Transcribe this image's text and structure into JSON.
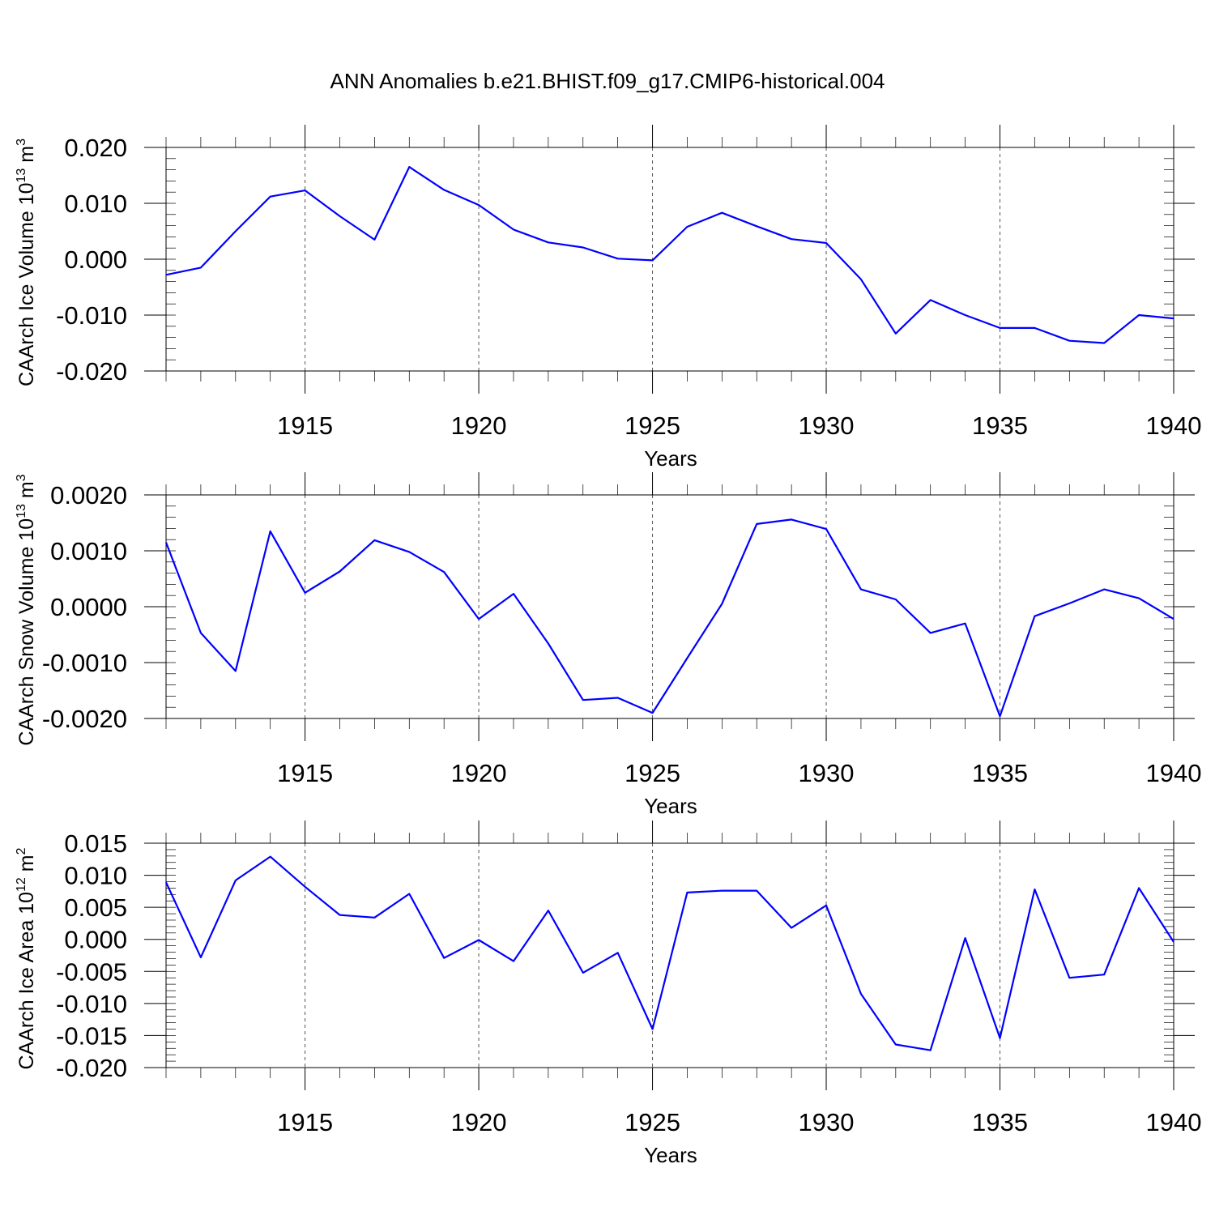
{
  "title": "ANN Anomalies b.e21.BHIST.f09_g17.CMIP6-historical.004",
  "colors": {
    "series": "#0000ff",
    "axes": "#000000",
    "grid": "#555555"
  },
  "chart_data": [
    {
      "type": "line",
      "ylabel": "CAArch Ice Volume",
      "yunit_base": "10",
      "yunit_exp": "13",
      "yunit_dim": "m",
      "yunit_dim_exp": "3",
      "xlabel": "Years",
      "xlim": [
        1911,
        1940
      ],
      "ylim": [
        -0.02,
        0.02
      ],
      "yticks": [
        -0.02,
        -0.01,
        0.0,
        0.01,
        0.02
      ],
      "ytick_labels": [
        "-0.020",
        "-0.010",
        "0.000",
        "0.010",
        "0.020"
      ],
      "ytick_step_minor": 0.002,
      "xticks": [
        1915,
        1920,
        1925,
        1930,
        1935,
        1940
      ],
      "xtick_labels": [
        "1915",
        "1920",
        "1925",
        "1930",
        "1935",
        "1940"
      ],
      "x": [
        1911,
        1912,
        1913,
        1914,
        1915,
        1916,
        1917,
        1918,
        1919,
        1920,
        1921,
        1922,
        1923,
        1924,
        1925,
        1926,
        1927,
        1928,
        1929,
        1930,
        1931,
        1932,
        1933,
        1934,
        1935,
        1936,
        1937,
        1938,
        1939,
        1940
      ],
      "values": [
        -0.0028,
        -0.0015,
        0.005,
        0.0112,
        0.0123,
        0.0077,
        0.0035,
        0.0165,
        0.0124,
        0.0097,
        0.0053,
        0.003,
        0.0021,
        0.0001,
        -0.0002,
        0.0058,
        0.0083,
        0.0059,
        0.0036,
        0.0029,
        -0.0036,
        -0.0133,
        -0.0073,
        -0.01,
        -0.0123,
        -0.0123,
        -0.0146,
        -0.015,
        -0.01,
        -0.0106
      ]
    },
    {
      "type": "line",
      "ylabel": "CAArch Snow Volume",
      "yunit_base": "10",
      "yunit_exp": "13",
      "yunit_dim": "m",
      "yunit_dim_exp": "3",
      "xlabel": "Years",
      "xlim": [
        1911,
        1940
      ],
      "ylim": [
        -0.002,
        0.002
      ],
      "yticks": [
        -0.002,
        -0.001,
        0.0,
        0.001,
        0.002
      ],
      "ytick_labels": [
        "-0.0020",
        "-0.0010",
        "0.0000",
        "0.0010",
        "0.0020"
      ],
      "ytick_step_minor": 0.0002,
      "xticks": [
        1915,
        1920,
        1925,
        1930,
        1935,
        1940
      ],
      "xtick_labels": [
        "1915",
        "1920",
        "1925",
        "1930",
        "1935",
        "1940"
      ],
      "x": [
        1911,
        1912,
        1913,
        1914,
        1915,
        1916,
        1917,
        1918,
        1919,
        1920,
        1921,
        1922,
        1923,
        1924,
        1925,
        1926,
        1927,
        1928,
        1929,
        1930,
        1931,
        1932,
        1933,
        1934,
        1935,
        1936,
        1937,
        1938,
        1939,
        1940
      ],
      "values": [
        0.00115,
        -0.00047,
        -0.00115,
        0.00135,
        0.00025,
        0.00063,
        0.00119,
        0.00098,
        0.00062,
        -0.00022,
        0.00023,
        -0.00066,
        -0.00167,
        -0.00163,
        -0.0019,
        -0.00092,
        5e-05,
        0.00148,
        0.00156,
        0.00139,
        0.00031,
        0.00013,
        -0.00047,
        -0.0003,
        -0.00196,
        -0.00017,
        6e-05,
        0.00031,
        0.00015,
        -0.00022
      ]
    },
    {
      "type": "line",
      "ylabel": "CAArch Ice Area",
      "yunit_base": "10",
      "yunit_exp": "12",
      "yunit_dim": "m",
      "yunit_dim_exp": "2",
      "xlabel": "Years",
      "xlim": [
        1911,
        1940
      ],
      "ylim": [
        -0.02,
        0.015
      ],
      "yticks": [
        -0.02,
        -0.015,
        -0.01,
        -0.005,
        0.0,
        0.005,
        0.01,
        0.015
      ],
      "ytick_labels": [
        "-0.020",
        "-0.015",
        "-0.010",
        "-0.005",
        "0.000",
        "0.005",
        "0.010",
        "0.015"
      ],
      "ytick_step_minor": 0.001,
      "xticks": [
        1915,
        1920,
        1925,
        1930,
        1935,
        1940
      ],
      "xtick_labels": [
        "1915",
        "1920",
        "1925",
        "1930",
        "1935",
        "1940"
      ],
      "x": [
        1911,
        1912,
        1913,
        1914,
        1915,
        1916,
        1917,
        1918,
        1919,
        1920,
        1921,
        1922,
        1923,
        1924,
        1925,
        1926,
        1927,
        1928,
        1929,
        1930,
        1931,
        1932,
        1933,
        1934,
        1935,
        1936,
        1937,
        1938,
        1939,
        1940
      ],
      "values": [
        0.0089,
        -0.0028,
        0.0092,
        0.0129,
        0.0082,
        0.0038,
        0.0034,
        0.0071,
        -0.0029,
        -0.0001,
        -0.0034,
        0.0045,
        -0.0052,
        -0.0021,
        -0.014,
        0.0073,
        0.0076,
        0.0076,
        0.0018,
        0.0053,
        -0.0085,
        -0.0164,
        -0.0173,
        0.0002,
        -0.0154,
        0.0078,
        -0.006,
        -0.0055,
        0.008,
        -0.0004
      ]
    }
  ]
}
